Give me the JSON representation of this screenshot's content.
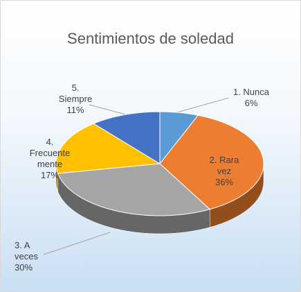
{
  "chart_data": {
    "type": "pie",
    "title": "Sentimientos de soledad",
    "categories": [
      "1. Nunca",
      "2. Rara vez",
      "3. A veces",
      "4. Frecuentemente",
      "5. Siempre"
    ],
    "values": [
      6,
      36,
      30,
      17,
      11
    ],
    "value_labels": [
      "6%",
      "36%",
      "30%",
      "17%",
      "11%"
    ],
    "colors": [
      "#5B9BD5",
      "#ED7D31",
      "#A5A5A5",
      "#FFC000",
      "#4472C4"
    ]
  }
}
